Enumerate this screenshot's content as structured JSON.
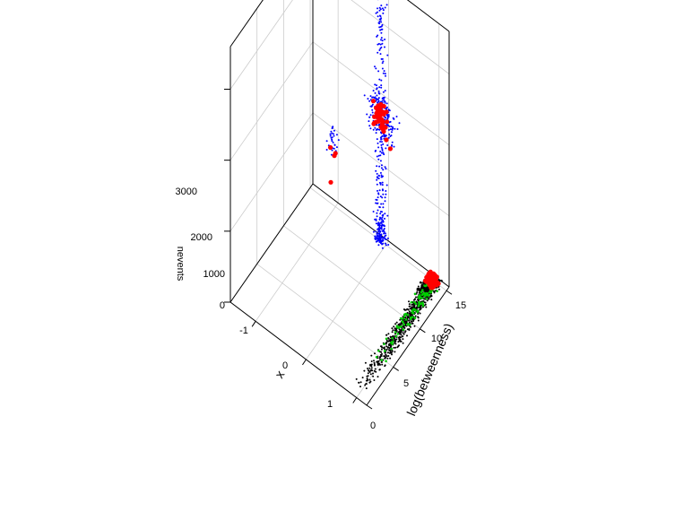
{
  "chart_data": {
    "type": "scatter",
    "title": "",
    "axes": {
      "x": {
        "label": "x",
        "range": [
          -1.5,
          1.2
        ],
        "ticks": [
          "-1",
          "0",
          "1"
        ],
        "tick_values": [
          -1,
          0,
          1
        ]
      },
      "betweenness": {
        "label": "log(betweenness)",
        "range": [
          0,
          15.5
        ],
        "ticks": [
          "0",
          "5",
          "10",
          "15"
        ],
        "tick_values": [
          0,
          5,
          10,
          15
        ]
      },
      "z": {
        "label": "nevents",
        "range": [
          0,
          3600
        ],
        "ticks": [
          "0",
          "1000",
          "2000",
          "3000"
        ],
        "tick_values": [
          0,
          1000,
          2000,
          3000
        ]
      }
    },
    "grid": true,
    "series": [
      {
        "color": "#000000",
        "marker": "small-dot",
        "region": "x≈1, log(betweenness) 1–15, nevents≈0"
      },
      {
        "color": "#00cc00",
        "marker": "small-dot",
        "region": "x≈1, log(betweenness) 4–15, nevents≈0"
      },
      {
        "color": "#0000ff",
        "marker": "small-dot",
        "region": "x≈-1 and x≈0 clusters, log(betweenness)≈15, nevents 0–3600"
      },
      {
        "color": "#ff0000",
        "marker": "large-dot",
        "region": "x≈-1, 0, 1 clusters, log(betweenness)≈15, nevents 0–2000"
      }
    ]
  }
}
